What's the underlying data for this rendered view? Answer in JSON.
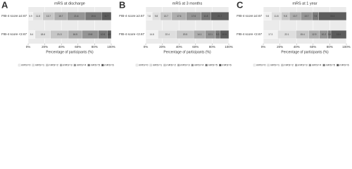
{
  "chart_data": [
    {
      "type": "bar",
      "orientation": "horizontal",
      "stacked": true,
      "panel_label": "A",
      "title": "mRS at discharge",
      "categories": [
        "FIB-4 score ≥2.67",
        "FIB-4 score <2.67"
      ],
      "xlabel": "Percentage of participants (%)",
      "xlim": [
        0,
        100
      ],
      "xticks": [
        {
          "value": 0,
          "label": "0%"
        },
        {
          "value": 20,
          "label": "20%"
        },
        {
          "value": 40,
          "label": "40%"
        },
        {
          "value": 60,
          "label": "60%"
        },
        {
          "value": 80,
          "label": "80%"
        },
        {
          "value": 100,
          "label": "100%"
        }
      ],
      "grid": true,
      "series": [
        {
          "name": "mRS=0",
          "color": "#f2f2f2",
          "values": [
            5.9,
            8.4
          ]
        },
        {
          "name": "mRS=1",
          "color": "#dedede",
          "values": [
            11.8,
            18.6
          ]
        },
        {
          "name": "mRS=2",
          "color": "#c6c6c6",
          "values": [
            13.7,
            21.3
          ]
        },
        {
          "name": "mRS=3",
          "color": "#aeaeae",
          "values": [
            15.7,
            16.5
          ]
        },
        {
          "name": "mRS=4",
          "color": "#959595",
          "values": [
            21.6,
            19.8
          ]
        },
        {
          "name": "mRS=5",
          "color": "#7a7a7a",
          "values": [
            19.6,
            10.5
          ]
        },
        {
          "name": "mRS=6",
          "color": "#5c5c5c",
          "values": [
            11.7,
            4.9
          ]
        }
      ]
    },
    {
      "type": "bar",
      "orientation": "horizontal",
      "stacked": true,
      "panel_label": "B",
      "title": "mRS at 3 months",
      "categories": [
        "FIB-4 score ≥2.67",
        "FIB-4 score <2.67"
      ],
      "xlabel": "Percentage of participants (%)",
      "xlim": [
        0,
        100
      ],
      "xticks": [
        {
          "value": 0,
          "label": "0%"
        },
        {
          "value": 20,
          "label": "20%"
        },
        {
          "value": 40,
          "label": "40%"
        },
        {
          "value": 60,
          "label": "60%"
        },
        {
          "value": 80,
          "label": "80%"
        },
        {
          "value": 100,
          "label": "100%"
        }
      ],
      "grid": true,
      "series": [
        {
          "name": "mRS=0",
          "color": "#f2f2f2",
          "values": [
            7.8,
            14.8
          ]
        },
        {
          "name": "mRS=1",
          "color": "#dedede",
          "values": [
            9.8,
            22.4
          ]
        },
        {
          "name": "mRS=2",
          "color": "#c6c6c6",
          "values": [
            13.7,
            20.5
          ]
        },
        {
          "name": "mRS=3",
          "color": "#aeaeae",
          "values": [
            17.6,
            14.1
          ]
        },
        {
          "name": "mRS=4",
          "color": "#959595",
          "values": [
            17.6,
            12.1
          ]
        },
        {
          "name": "mRS=5",
          "color": "#7a7a7a",
          "values": [
            11.8,
            5.3
          ]
        },
        {
          "name": "mRS=6",
          "color": "#5c5c5c",
          "values": [
            21.7,
            10.8
          ]
        }
      ]
    },
    {
      "type": "bar",
      "orientation": "horizontal",
      "stacked": true,
      "panel_label": "C",
      "title": "mRS at 1 year",
      "categories": [
        "FIB-4 score ≥2.67",
        "FIB-4 score <2.67"
      ],
      "xlabel": "Percentage of participants (%)",
      "xlim": [
        0,
        100
      ],
      "xticks": [
        {
          "value": 0,
          "label": "0%"
        },
        {
          "value": 20,
          "label": "20%"
        },
        {
          "value": 40,
          "label": "40%"
        },
        {
          "value": 60,
          "label": "60%"
        },
        {
          "value": 80,
          "label": "80%"
        },
        {
          "value": 100,
          "label": "100%"
        }
      ],
      "grid": true,
      "series": [
        {
          "name": "mRS=0",
          "color": "#f2f2f2",
          "values": [
            9.8,
            17.3
          ]
        },
        {
          "name": "mRS=1",
          "color": "#dedede",
          "values": [
            11.8,
            22.1
          ]
        },
        {
          "name": "mRS=2",
          "color": "#c6c6c6",
          "values": [
            9.8,
            15.4
          ]
        },
        {
          "name": "mRS=3",
          "color": "#aeaeae",
          "values": [
            13.7,
            12.9
          ]
        },
        {
          "name": "mRS=4",
          "color": "#959595",
          "values": [
            13.7,
            10.2
          ]
        },
        {
          "name": "mRS=5",
          "color": "#7a7a7a",
          "values": [
            7.8,
            3.5
          ]
        },
        {
          "name": "mRS=6",
          "color": "#5c5c5c",
          "values": [
            33.4,
            18.6
          ]
        }
      ]
    }
  ]
}
